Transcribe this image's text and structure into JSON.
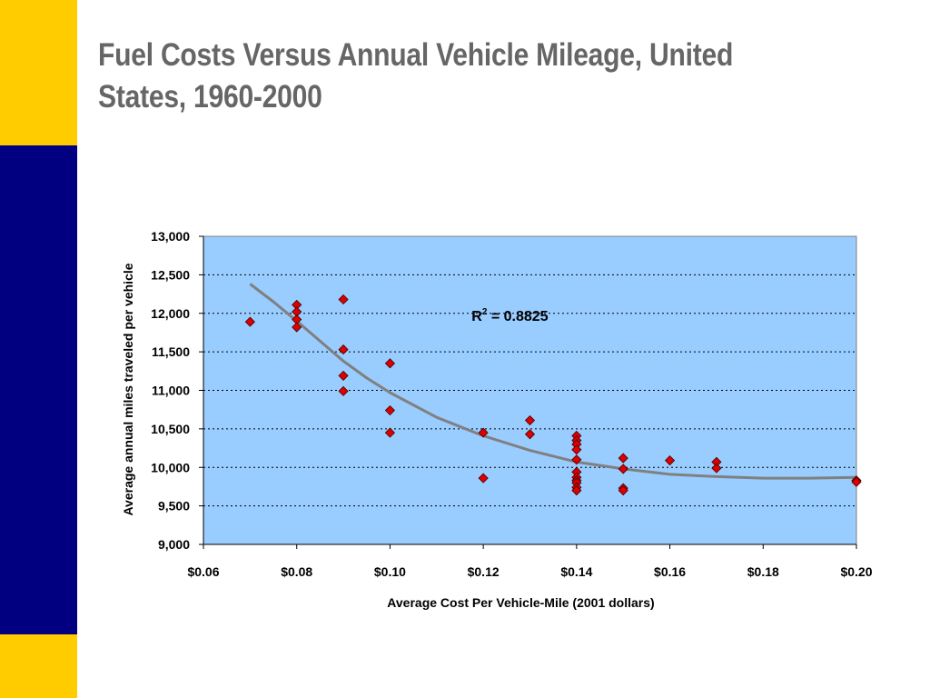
{
  "slide": {
    "title": "Fuel Costs Versus Annual Vehicle Mileage, United States, 1960-2000",
    "accent_colors": {
      "yellow": "#ffcc00",
      "navy": "#000080",
      "title_gray": "#666666"
    }
  },
  "chart_data": {
    "type": "scatter",
    "title": "",
    "xlabel": "Average Cost Per Vehicle-Mile (2001 dollars)",
    "ylabel": "Average annual miles traveled per vehicle",
    "xlim": [
      0.06,
      0.2
    ],
    "ylim": [
      9000,
      13000
    ],
    "xticks": [
      0.06,
      0.08,
      0.1,
      0.12,
      0.14,
      0.16,
      0.18,
      0.2
    ],
    "xtick_labels": [
      "$0.06",
      "$0.08",
      "$0.10",
      "$0.12",
      "$0.14",
      "$0.16",
      "$0.18",
      "$0.20"
    ],
    "yticks": [
      9000,
      9500,
      10000,
      10500,
      11000,
      11500,
      12000,
      12500,
      13000
    ],
    "ytick_labels": [
      "9,000",
      "9,500",
      "10,000",
      "10,500",
      "11,000",
      "11,500",
      "12,000",
      "12,500",
      "13,000"
    ],
    "grid": "horizontal dotted",
    "plot_background": "#99ccff",
    "marker_color": "#dd0000",
    "trendline_color": "#808080",
    "annotation": {
      "r2_label": "R",
      "r2_sup": "2",
      "r2_value": " = 0.8825",
      "x": 0.1175,
      "y": 11900
    },
    "points": [
      {
        "x": 0.07,
        "y": 11890
      },
      {
        "x": 0.08,
        "y": 12110
      },
      {
        "x": 0.08,
        "y": 12020
      },
      {
        "x": 0.08,
        "y": 11920
      },
      {
        "x": 0.08,
        "y": 11820
      },
      {
        "x": 0.09,
        "y": 12180
      },
      {
        "x": 0.09,
        "y": 11530
      },
      {
        "x": 0.09,
        "y": 11190
      },
      {
        "x": 0.09,
        "y": 10990
      },
      {
        "x": 0.1,
        "y": 11350
      },
      {
        "x": 0.1,
        "y": 10740
      },
      {
        "x": 0.1,
        "y": 10450
      },
      {
        "x": 0.12,
        "y": 10450
      },
      {
        "x": 0.12,
        "y": 9860
      },
      {
        "x": 0.13,
        "y": 10610
      },
      {
        "x": 0.13,
        "y": 10430
      },
      {
        "x": 0.14,
        "y": 10410
      },
      {
        "x": 0.14,
        "y": 10350
      },
      {
        "x": 0.14,
        "y": 10300
      },
      {
        "x": 0.14,
        "y": 10230
      },
      {
        "x": 0.14,
        "y": 10100
      },
      {
        "x": 0.14,
        "y": 9940
      },
      {
        "x": 0.14,
        "y": 9870
      },
      {
        "x": 0.14,
        "y": 9830
      },
      {
        "x": 0.14,
        "y": 9800
      },
      {
        "x": 0.14,
        "y": 9740
      },
      {
        "x": 0.14,
        "y": 9700
      },
      {
        "x": 0.15,
        "y": 10120
      },
      {
        "x": 0.15,
        "y": 9980
      },
      {
        "x": 0.15,
        "y": 9730
      },
      {
        "x": 0.15,
        "y": 9700
      },
      {
        "x": 0.16,
        "y": 10090
      },
      {
        "x": 0.17,
        "y": 10070
      },
      {
        "x": 0.17,
        "y": 9990
      },
      {
        "x": 0.2,
        "y": 9830
      },
      {
        "x": 0.2,
        "y": 9810
      }
    ],
    "trendline": [
      {
        "x": 0.07,
        "y": 12380
      },
      {
        "x": 0.075,
        "y": 12150
      },
      {
        "x": 0.08,
        "y": 11900
      },
      {
        "x": 0.085,
        "y": 11640
      },
      {
        "x": 0.09,
        "y": 11380
      },
      {
        "x": 0.095,
        "y": 11160
      },
      {
        "x": 0.1,
        "y": 10970
      },
      {
        "x": 0.11,
        "y": 10650
      },
      {
        "x": 0.12,
        "y": 10410
      },
      {
        "x": 0.13,
        "y": 10220
      },
      {
        "x": 0.14,
        "y": 10070
      },
      {
        "x": 0.15,
        "y": 9980
      },
      {
        "x": 0.16,
        "y": 9910
      },
      {
        "x": 0.17,
        "y": 9880
      },
      {
        "x": 0.18,
        "y": 9860
      },
      {
        "x": 0.19,
        "y": 9860
      },
      {
        "x": 0.2,
        "y": 9870
      }
    ]
  }
}
